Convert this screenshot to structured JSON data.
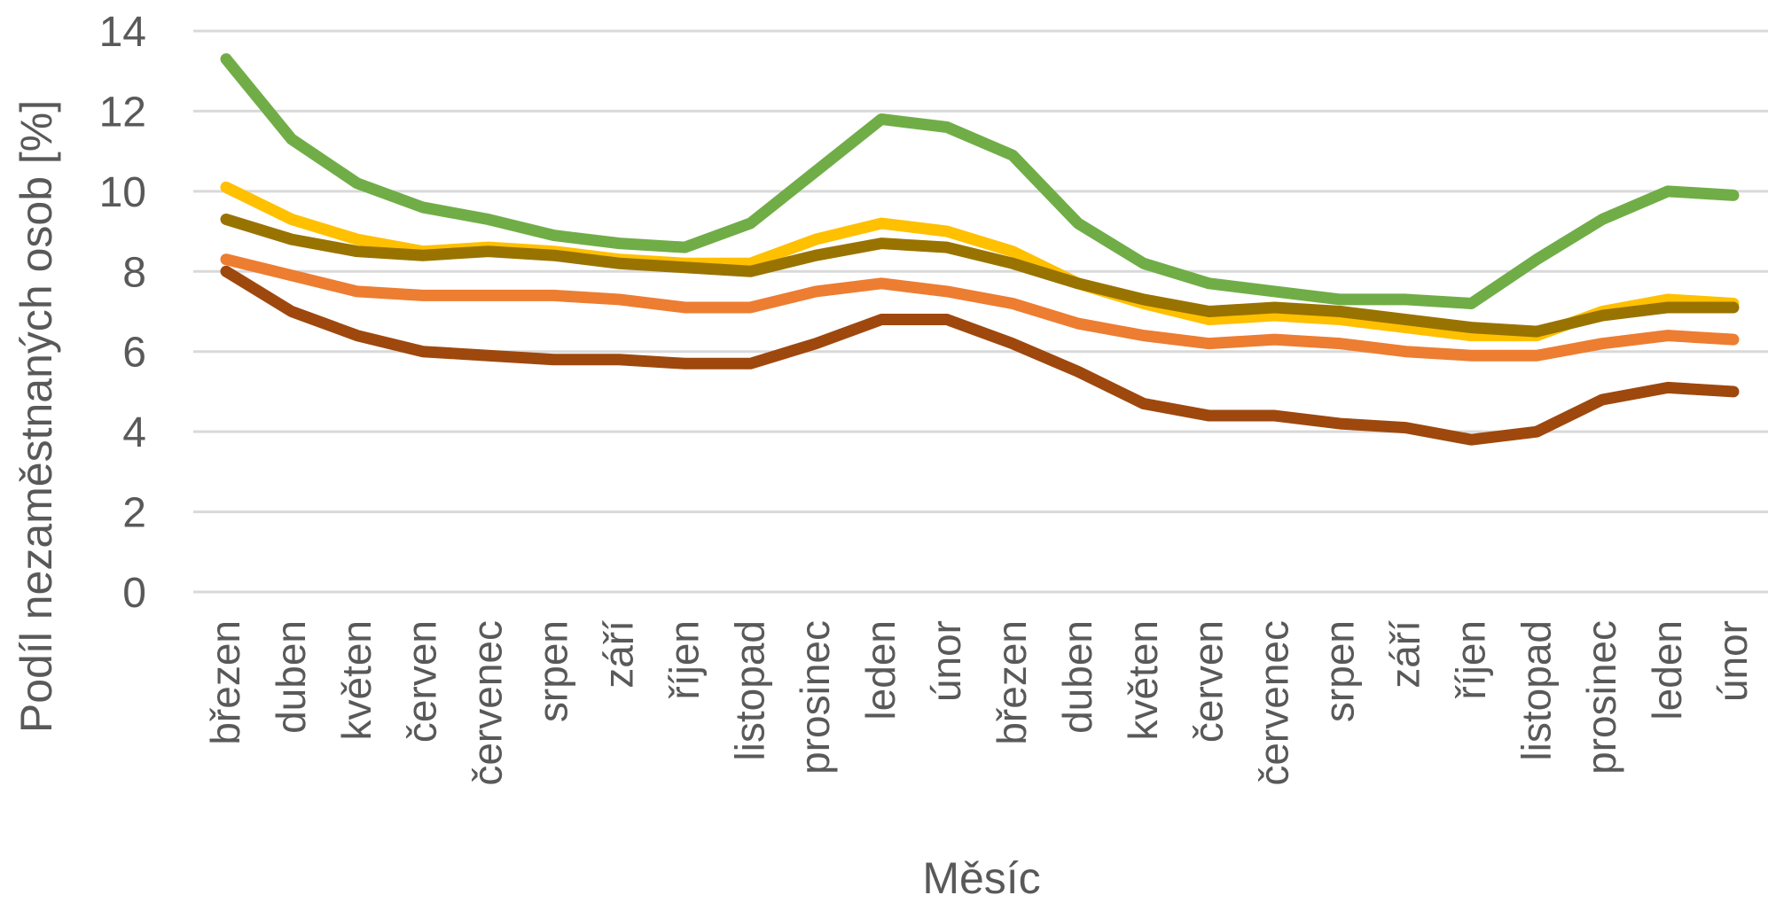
{
  "chart_data": {
    "type": "line",
    "title": "",
    "xlabel": "Měsíc",
    "ylabel": "Podíl nezaměstnaných osob [%]",
    "ylim": [
      0,
      14
    ],
    "yticks": [
      "0",
      "2",
      "4",
      "6",
      "8",
      "10",
      "12",
      "14"
    ],
    "grid": true,
    "legend": "none",
    "categories": [
      "březen",
      "duben",
      "květen",
      "červen",
      "červenec",
      "srpen",
      "září",
      "říjen",
      "listopad",
      "prosinec",
      "leden",
      "únor",
      "březen",
      "duben",
      "květen",
      "červen",
      "červenec",
      "srpen",
      "září",
      "říjen",
      "listopad",
      "prosinec",
      "leden",
      "únor"
    ],
    "series": [
      {
        "color": "#70AD47",
        "values": [
          13.3,
          11.3,
          10.2,
          9.6,
          9.3,
          8.9,
          8.7,
          8.6,
          9.2,
          10.5,
          11.8,
          11.6,
          10.9,
          9.2,
          8.2,
          7.7,
          7.5,
          7.3,
          7.3,
          7.2,
          8.3,
          9.3,
          10.0,
          9.9
        ]
      },
      {
        "color": "#FFC000",
        "values": [
          10.1,
          9.3,
          8.8,
          8.5,
          8.6,
          8.5,
          8.3,
          8.2,
          8.2,
          8.8,
          9.2,
          9.0,
          8.5,
          7.7,
          7.2,
          6.8,
          6.9,
          6.8,
          6.6,
          6.4,
          6.4,
          7.0,
          7.3,
          7.2
        ]
      },
      {
        "color": "#997300",
        "values": [
          9.3,
          8.8,
          8.5,
          8.4,
          8.5,
          8.4,
          8.2,
          8.1,
          8.0,
          8.4,
          8.7,
          8.6,
          8.2,
          7.7,
          7.3,
          7.0,
          7.1,
          7.0,
          6.8,
          6.6,
          6.5,
          6.9,
          7.1,
          7.1
        ]
      },
      {
        "color": "#ED7D31",
        "values": [
          8.3,
          7.9,
          7.5,
          7.4,
          7.4,
          7.4,
          7.3,
          7.1,
          7.1,
          7.5,
          7.7,
          7.5,
          7.2,
          6.7,
          6.4,
          6.2,
          6.3,
          6.2,
          6.0,
          5.9,
          5.9,
          6.2,
          6.4,
          6.3
        ]
      },
      {
        "color": "#9E480E",
        "values": [
          8.0,
          7.0,
          6.4,
          6.0,
          5.9,
          5.8,
          5.8,
          5.7,
          5.7,
          6.2,
          6.8,
          6.8,
          6.2,
          5.5,
          4.7,
          4.4,
          4.4,
          4.2,
          4.1,
          3.8,
          4.0,
          4.8,
          5.1,
          5.0
        ]
      }
    ]
  }
}
